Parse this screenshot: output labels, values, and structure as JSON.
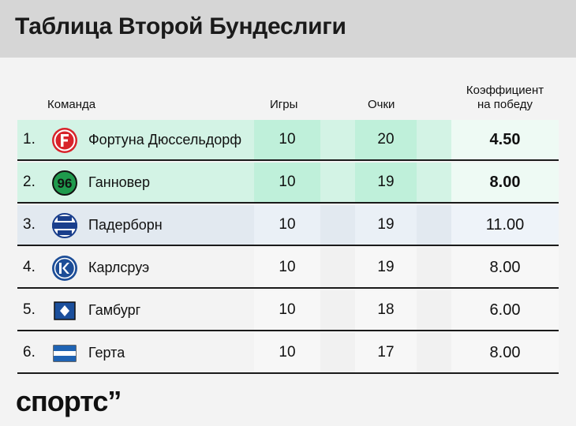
{
  "title": "Таблица Второй Бундеслиги",
  "columns": {
    "team": "Команда",
    "games": "Игры",
    "points": "Очки",
    "odds_line1": "Коэффициент",
    "odds_line2": "на победу"
  },
  "rows": [
    {
      "rank": "1.",
      "team": "Фортуна Дюссельдорф",
      "games": "10",
      "points": "20",
      "odds": "4.50",
      "logo": "fortuna-dusseldorf-logo",
      "zone": "promotion"
    },
    {
      "rank": "2.",
      "team": "Ганновер",
      "games": "10",
      "points": "19",
      "odds": "8.00",
      "logo": "hannover-96-logo",
      "zone": "promotion"
    },
    {
      "rank": "3.",
      "team": "Падерборн",
      "games": "10",
      "points": "19",
      "odds": "11.00",
      "logo": "paderborn-logo",
      "zone": "playoff"
    },
    {
      "rank": "4.",
      "team": "Карлсруэ",
      "games": "10",
      "points": "19",
      "odds": "8.00",
      "logo": "karlsruhe-logo",
      "zone": "none"
    },
    {
      "rank": "5.",
      "team": "Гамбург",
      "games": "10",
      "points": "18",
      "odds": "6.00",
      "logo": "hamburg-logo",
      "zone": "none"
    },
    {
      "rank": "6.",
      "team": "Герта",
      "games": "10",
      "points": "17",
      "odds": "8.00",
      "logo": "hertha-logo",
      "zone": "none"
    }
  ],
  "brand": "спортс’’",
  "colors": {
    "promotion": "#d3f3e5",
    "playoff": "#e2e9f0",
    "header": "#d6d6d6",
    "fortuna_red": "#d8232a",
    "hannover_green": "#1f9a4d",
    "hamburg_blue": "#1b4f9c",
    "karlsruhe_blue": "#1c4d97",
    "hertha_blue": "#1f63b3"
  }
}
